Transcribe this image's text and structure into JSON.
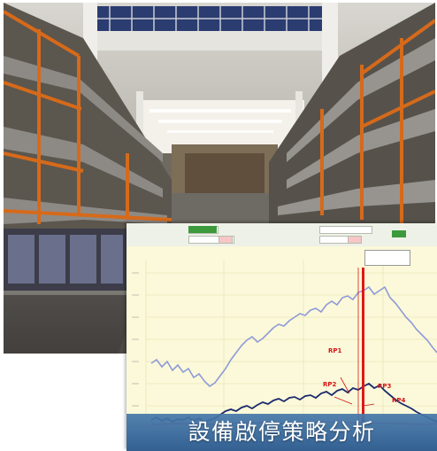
{
  "caption": "設備啟停策略分析",
  "chart_window": {
    "toolbar_left_value": "",
    "toolbar_right_value": "",
    "annotations": [
      {
        "text": "RP1"
      },
      {
        "text": "RP2"
      },
      {
        "text": "RP3"
      },
      {
        "text": "RP4"
      }
    ]
  },
  "colors": {
    "banner": "#3f6fa3",
    "series_light": "#8f9ad8",
    "series_dark": "#1c2a6e",
    "marker_red": "#e01818",
    "chart_bg": "#fbf9d9"
  }
}
